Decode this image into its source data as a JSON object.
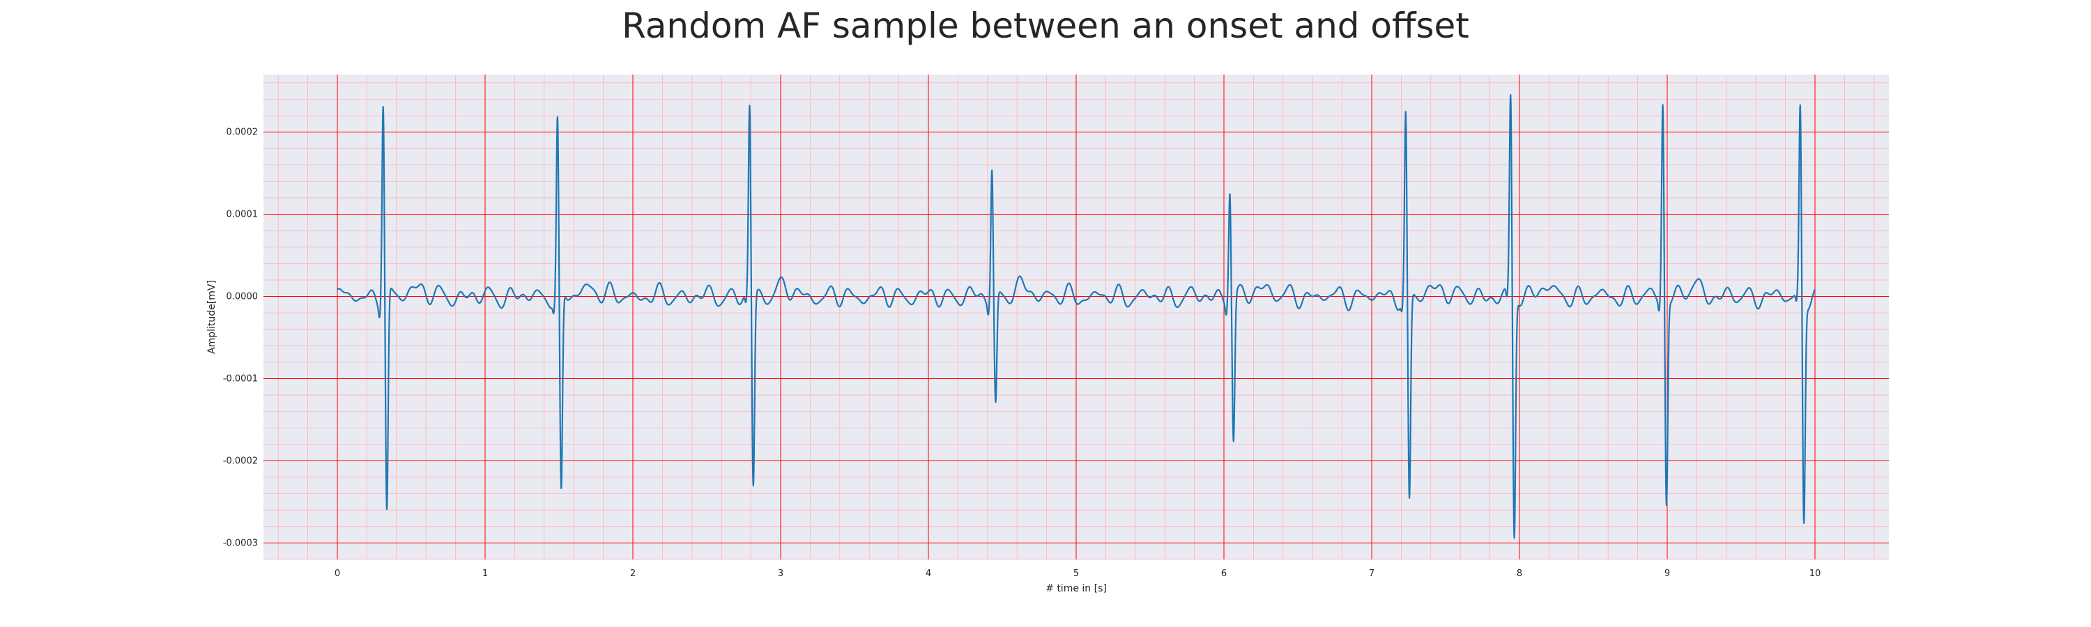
{
  "chart_data": {
    "type": "line",
    "title": "Random AF sample between an onset and offset",
    "xlabel": "# time in [s]",
    "ylabel": "Amplitude[mV]",
    "xlim": [
      -0.5,
      10.5
    ],
    "ylim": [
      -0.00032,
      0.00027
    ],
    "xticks": [
      0,
      1,
      2,
      3,
      4,
      5,
      6,
      7,
      8,
      9,
      10
    ],
    "xtick_labels": [
      "0",
      "1",
      "2",
      "3",
      "4",
      "5",
      "6",
      "7",
      "8",
      "9",
      "10"
    ],
    "yticks": [
      0.0002,
      0.0001,
      0.0,
      -0.0001,
      -0.0002,
      -0.0003
    ],
    "ytick_labels": [
      "0.0002",
      "0.0001",
      "0.0000",
      "-0.0001",
      "-0.0002",
      "-0.0003"
    ],
    "grid": "major and minor",
    "colors": {
      "line": "#1f77b4",
      "background": "#eaeaf2",
      "major_grid": "#ff0000",
      "minor_grid": "#ffb3b3"
    },
    "series": [
      {
        "beats": [
          {
            "t": 0.31,
            "peak": 0.00024,
            "trough": -0.00027
          },
          {
            "t": 1.49,
            "peak": 0.000213,
            "trough": -0.000248
          },
          {
            "t": 2.79,
            "peak": 0.000232,
            "trough": -0.000233
          },
          {
            "t": 4.43,
            "peak": 0.00016,
            "trough": -0.000135
          },
          {
            "t": 6.04,
            "peak": 0.000135,
            "trough": -0.000177
          },
          {
            "t": 7.23,
            "peak": 0.00022,
            "trough": -0.000255
          },
          {
            "t": 7.94,
            "peak": 0.000242,
            "trough": -0.000295
          },
          {
            "t": 8.97,
            "peak": 0.00024,
            "trough": -0.00025
          },
          {
            "t": 9.9,
            "peak": 0.000228,
            "trough": -0.000272
          }
        ],
        "x_range": [
          0,
          10
        ],
        "baseline_noise": 1e-05
      }
    ]
  }
}
